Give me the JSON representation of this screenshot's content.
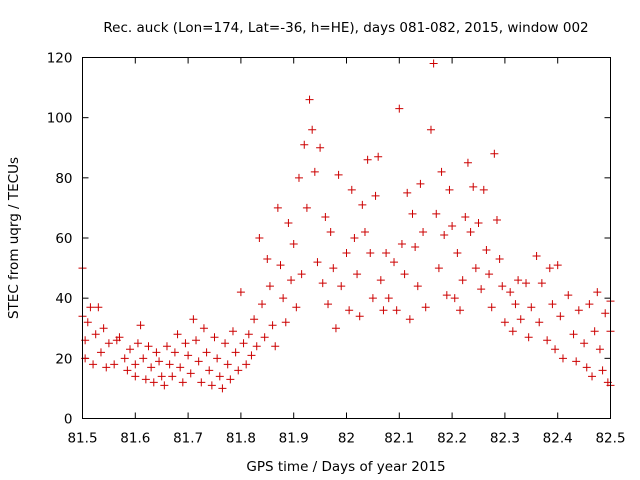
{
  "chart_data": {
    "type": "scatter",
    "title": "Rec. auck (Lon=174, Lat=-36, h=HE), days 081-082, 2015, window 002",
    "xlabel": "GPS time / Days of year 2015",
    "ylabel": "STEC from uqrg / TECUs",
    "xlim": [
      81.5,
      82.5
    ],
    "ylim": [
      0,
      120
    ],
    "xticks": [
      81.5,
      81.6,
      81.7,
      81.8,
      81.9,
      82.0,
      82.1,
      82.2,
      82.3,
      82.4,
      82.5
    ],
    "xtick_labels": [
      "81.5",
      "81.6",
      "81.7",
      "81.8",
      "81.9",
      "82",
      "82.1",
      "82.2",
      "82.3",
      "82.4",
      "82.5"
    ],
    "yticks": [
      0,
      20,
      40,
      60,
      80,
      100,
      120
    ],
    "ytick_labels": [
      "0",
      "20",
      "40",
      "60",
      "80",
      "100",
      "120"
    ],
    "grid": false,
    "marker": "plus",
    "color": "#cc0000",
    "series": [
      {
        "name": "STEC",
        "points": [
          [
            81.5,
            50
          ],
          [
            81.5,
            34
          ],
          [
            81.505,
            26
          ],
          [
            81.505,
            20
          ],
          [
            81.51,
            32
          ],
          [
            81.515,
            37
          ],
          [
            81.52,
            18
          ],
          [
            81.525,
            28
          ],
          [
            81.53,
            37
          ],
          [
            81.535,
            22
          ],
          [
            81.54,
            30
          ],
          [
            81.545,
            17
          ],
          [
            81.55,
            25
          ],
          [
            81.56,
            18
          ],
          [
            81.565,
            26
          ],
          [
            81.57,
            27
          ],
          [
            81.58,
            20
          ],
          [
            81.585,
            16
          ],
          [
            81.59,
            23
          ],
          [
            81.6,
            14
          ],
          [
            81.6,
            18
          ],
          [
            81.605,
            25
          ],
          [
            81.61,
            31
          ],
          [
            81.615,
            20
          ],
          [
            81.62,
            13
          ],
          [
            81.625,
            24
          ],
          [
            81.63,
            17
          ],
          [
            81.635,
            12
          ],
          [
            81.64,
            22
          ],
          [
            81.645,
            19
          ],
          [
            81.65,
            14
          ],
          [
            81.655,
            11
          ],
          [
            81.66,
            24
          ],
          [
            81.665,
            18
          ],
          [
            81.67,
            14
          ],
          [
            81.675,
            22
          ],
          [
            81.68,
            28
          ],
          [
            81.685,
            17
          ],
          [
            81.69,
            12
          ],
          [
            81.695,
            25
          ],
          [
            81.7,
            21
          ],
          [
            81.705,
            15
          ],
          [
            81.71,
            33
          ],
          [
            81.715,
            26
          ],
          [
            81.72,
            19
          ],
          [
            81.725,
            12
          ],
          [
            81.73,
            30
          ],
          [
            81.735,
            22
          ],
          [
            81.74,
            16
          ],
          [
            81.745,
            11
          ],
          [
            81.75,
            27
          ],
          [
            81.755,
            20
          ],
          [
            81.76,
            14
          ],
          [
            81.765,
            10
          ],
          [
            81.77,
            25
          ],
          [
            81.775,
            18
          ],
          [
            81.78,
            13
          ],
          [
            81.785,
            29
          ],
          [
            81.79,
            22
          ],
          [
            81.795,
            16
          ],
          [
            81.8,
            42
          ],
          [
            81.805,
            25
          ],
          [
            81.81,
            18
          ],
          [
            81.815,
            28
          ],
          [
            81.82,
            21
          ],
          [
            81.825,
            33
          ],
          [
            81.83,
            24
          ],
          [
            81.835,
            60
          ],
          [
            81.84,
            38
          ],
          [
            81.845,
            27
          ],
          [
            81.85,
            53
          ],
          [
            81.855,
            44
          ],
          [
            81.86,
            31
          ],
          [
            81.865,
            24
          ],
          [
            81.87,
            70
          ],
          [
            81.875,
            51
          ],
          [
            81.88,
            40
          ],
          [
            81.885,
            32
          ],
          [
            81.89,
            65
          ],
          [
            81.895,
            46
          ],
          [
            81.9,
            58
          ],
          [
            81.905,
            37
          ],
          [
            81.91,
            80
          ],
          [
            81.915,
            48
          ],
          [
            81.92,
            91
          ],
          [
            81.925,
            70
          ],
          [
            81.93,
            106
          ],
          [
            81.935,
            96
          ],
          [
            81.94,
            82
          ],
          [
            81.945,
            52
          ],
          [
            81.95,
            90
          ],
          [
            81.955,
            45
          ],
          [
            81.96,
            67
          ],
          [
            81.965,
            38
          ],
          [
            81.97,
            62
          ],
          [
            81.975,
            50
          ],
          [
            81.98,
            30
          ],
          [
            81.985,
            81
          ],
          [
            81.99,
            44
          ],
          [
            82.0,
            55
          ],
          [
            82.005,
            36
          ],
          [
            82.01,
            76
          ],
          [
            82.015,
            60
          ],
          [
            82.02,
            48
          ],
          [
            82.025,
            34
          ],
          [
            82.03,
            71
          ],
          [
            82.035,
            62
          ],
          [
            82.04,
            86
          ],
          [
            82.045,
            55
          ],
          [
            82.05,
            40
          ],
          [
            82.055,
            74
          ],
          [
            82.06,
            87
          ],
          [
            82.065,
            46
          ],
          [
            82.07,
            36
          ],
          [
            82.075,
            55
          ],
          [
            82.08,
            40
          ],
          [
            82.09,
            52
          ],
          [
            82.095,
            36
          ],
          [
            82.1,
            103
          ],
          [
            82.105,
            58
          ],
          [
            82.11,
            48
          ],
          [
            82.115,
            75
          ],
          [
            82.12,
            33
          ],
          [
            82.125,
            68
          ],
          [
            82.13,
            57
          ],
          [
            82.135,
            44
          ],
          [
            82.14,
            78
          ],
          [
            82.145,
            62
          ],
          [
            82.15,
            37
          ],
          [
            82.16,
            96
          ],
          [
            82.165,
            118
          ],
          [
            82.17,
            68
          ],
          [
            82.175,
            50
          ],
          [
            82.18,
            82
          ],
          [
            82.185,
            61
          ],
          [
            82.19,
            41
          ],
          [
            82.195,
            76
          ],
          [
            82.2,
            64
          ],
          [
            82.205,
            40
          ],
          [
            82.21,
            55
          ],
          [
            82.215,
            36
          ],
          [
            82.22,
            46
          ],
          [
            82.225,
            67
          ],
          [
            82.23,
            85
          ],
          [
            82.235,
            62
          ],
          [
            82.24,
            77
          ],
          [
            82.245,
            50
          ],
          [
            82.25,
            65
          ],
          [
            82.255,
            43
          ],
          [
            82.26,
            76
          ],
          [
            82.265,
            56
          ],
          [
            82.27,
            48
          ],
          [
            82.275,
            37
          ],
          [
            82.28,
            88
          ],
          [
            82.285,
            66
          ],
          [
            82.29,
            53
          ],
          [
            82.295,
            44
          ],
          [
            82.3,
            32
          ],
          [
            82.31,
            42
          ],
          [
            82.315,
            29
          ],
          [
            82.32,
            38
          ],
          [
            82.325,
            46
          ],
          [
            82.33,
            33
          ],
          [
            82.34,
            45
          ],
          [
            82.345,
            27
          ],
          [
            82.35,
            37
          ],
          [
            82.36,
            54
          ],
          [
            82.365,
            32
          ],
          [
            82.37,
            45
          ],
          [
            82.38,
            26
          ],
          [
            82.385,
            50
          ],
          [
            82.39,
            38
          ],
          [
            82.395,
            23
          ],
          [
            82.4,
            51
          ],
          [
            82.405,
            34
          ],
          [
            82.41,
            20
          ],
          [
            82.42,
            41
          ],
          [
            82.43,
            28
          ],
          [
            82.435,
            19
          ],
          [
            82.44,
            36
          ],
          [
            82.45,
            25
          ],
          [
            82.455,
            17
          ],
          [
            82.46,
            38
          ],
          [
            82.465,
            14
          ],
          [
            82.47,
            29
          ],
          [
            82.475,
            42
          ],
          [
            82.48,
            23
          ],
          [
            82.485,
            16
          ],
          [
            82.49,
            35
          ],
          [
            82.495,
            12
          ],
          [
            82.5,
            39
          ],
          [
            82.5,
            29
          ],
          [
            82.5,
            11
          ]
        ]
      }
    ]
  }
}
